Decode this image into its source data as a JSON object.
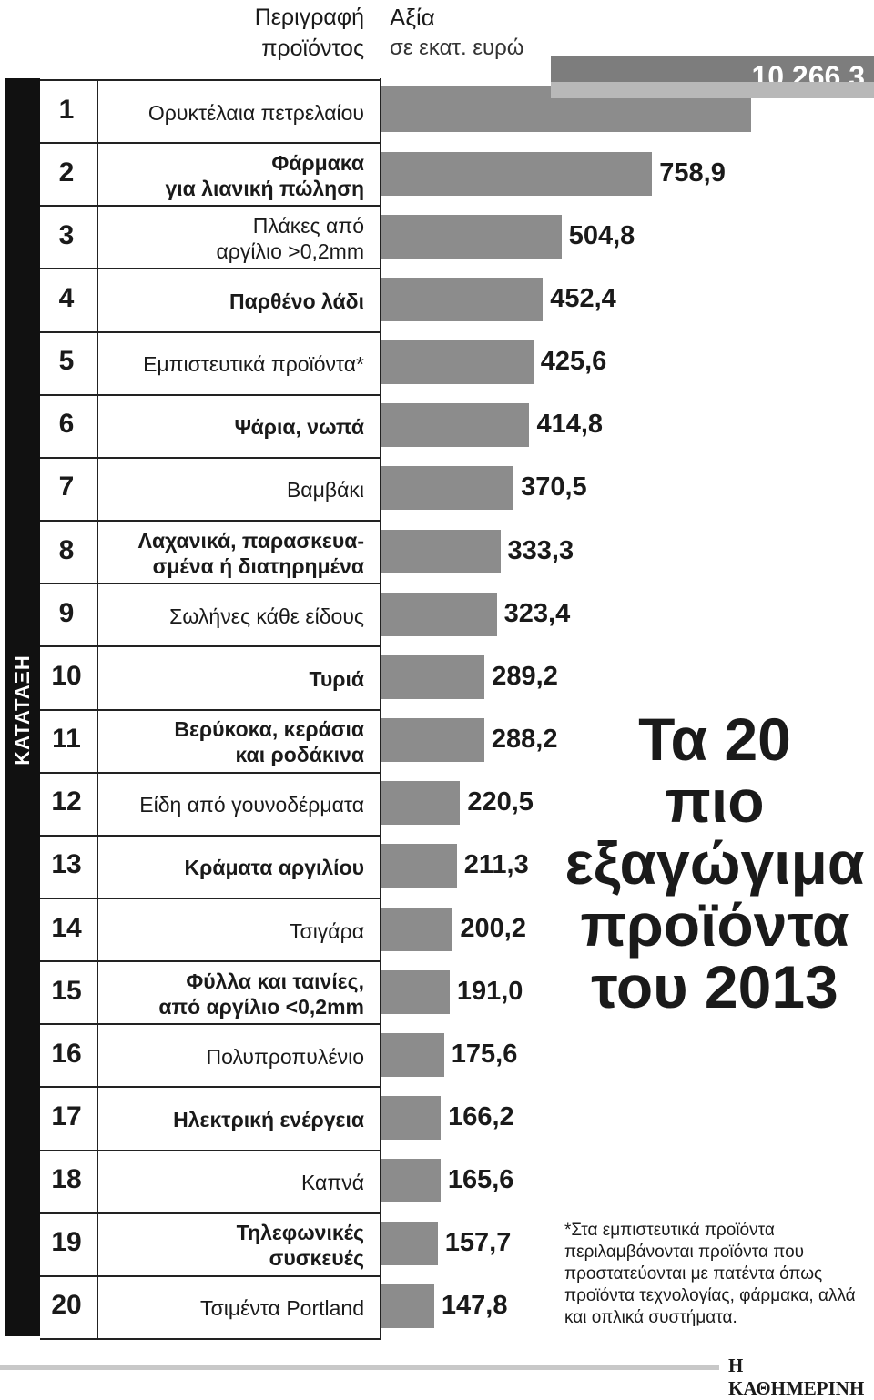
{
  "header": {
    "description_label": "Περιγραφή προϊόντος",
    "value_label": "Αξία",
    "value_unit": "σε εκατ. ευρώ",
    "rank_label": "ΚΑΤΑΤΑΞΗ"
  },
  "title": "Τα 20 πιο εξαγώγιμα προϊόντα του 2013",
  "footnote": "*Στα εμπιστευτικά προϊόντα περιλαμβάνονται προϊόντα που προστατεύονται με πατέντα όπως προϊόντα τεχνολογίας, φάρμακα, αλλά και οπλικά συστήματα.",
  "brand": "Η ΚΑΘΗΜΕΡΙΝΗ",
  "colors": {
    "bar": "#8c8c8c",
    "highlight_band": "#7d7d7d",
    "rank_strip": "#111111",
    "text": "#1a1a1a"
  },
  "chart_data": {
    "type": "bar",
    "orientation": "horizontal",
    "unit": "σε εκατ. ευρώ",
    "bar_1_axis_break": true,
    "categories": [
      {
        "rank": "1",
        "label": [
          "Ορυκτέλαια πετρελαίου"
        ],
        "bold": false,
        "value": 10266.3,
        "value_label": "10.266,3"
      },
      {
        "rank": "2",
        "label": [
          "Φάρμακα",
          "για λιανική πώληση"
        ],
        "bold": true,
        "value": 758.9,
        "value_label": "758,9"
      },
      {
        "rank": "3",
        "label": [
          "Πλάκες από",
          "αργίλιο >0,2mm"
        ],
        "bold": false,
        "value": 504.8,
        "value_label": "504,8"
      },
      {
        "rank": "4",
        "label": [
          "Παρθένο λάδι"
        ],
        "bold": true,
        "value": 452.4,
        "value_label": "452,4"
      },
      {
        "rank": "5",
        "label": [
          "Εμπιστευτικά προϊόντα*"
        ],
        "bold": false,
        "value": 425.6,
        "value_label": "425,6"
      },
      {
        "rank": "6",
        "label": [
          "Ψάρια, νωπά"
        ],
        "bold": true,
        "value": 414.8,
        "value_label": "414,8"
      },
      {
        "rank": "7",
        "label": [
          "Βαμβάκι"
        ],
        "bold": false,
        "value": 370.5,
        "value_label": "370,5"
      },
      {
        "rank": "8",
        "label": [
          "Λαχανικά, παρασκευα-",
          "σμένα ή διατηρημένα"
        ],
        "bold": true,
        "value": 333.3,
        "value_label": "333,3"
      },
      {
        "rank": "9",
        "label": [
          "Σωλήνες κάθε είδους"
        ],
        "bold": false,
        "value": 323.4,
        "value_label": "323,4"
      },
      {
        "rank": "10",
        "label": [
          "Τυριά"
        ],
        "bold": true,
        "value": 289.2,
        "value_label": "289,2"
      },
      {
        "rank": "11",
        "label": [
          "Βερύκοκα, κεράσια",
          "και ροδάκινα"
        ],
        "bold": true,
        "value": 288.2,
        "value_label": "288,2"
      },
      {
        "rank": "12",
        "label": [
          "Είδη από γουνοδέρματα"
        ],
        "bold": false,
        "value": 220.5,
        "value_label": "220,5"
      },
      {
        "rank": "13",
        "label": [
          "Κράματα αργιλίου"
        ],
        "bold": true,
        "value": 211.3,
        "value_label": "211,3"
      },
      {
        "rank": "14",
        "label": [
          "Τσιγάρα"
        ],
        "bold": false,
        "value": 200.2,
        "value_label": "200,2"
      },
      {
        "rank": "15",
        "label": [
          "Φύλλα και ταινίες,",
          "από αργίλιο <0,2mm"
        ],
        "bold": true,
        "value": 191.0,
        "value_label": "191,0"
      },
      {
        "rank": "16",
        "label": [
          "Πολυπροπυλένιο"
        ],
        "bold": false,
        "value": 175.6,
        "value_label": "175,6"
      },
      {
        "rank": "17",
        "label": [
          "Ηλεκτρική ενέργεια"
        ],
        "bold": true,
        "value": 166.2,
        "value_label": "166,2"
      },
      {
        "rank": "18",
        "label": [
          "Καπνά"
        ],
        "bold": false,
        "value": 165.6,
        "value_label": "165,6"
      },
      {
        "rank": "19",
        "label": [
          "Τηλεφωνικές",
          "συσκευές"
        ],
        "bold": true,
        "value": 157.7,
        "value_label": "157,7"
      },
      {
        "rank": "20",
        "label": [
          "Τσιμέντα Portland"
        ],
        "bold": false,
        "value": 147.8,
        "value_label": "147,8"
      }
    ]
  }
}
